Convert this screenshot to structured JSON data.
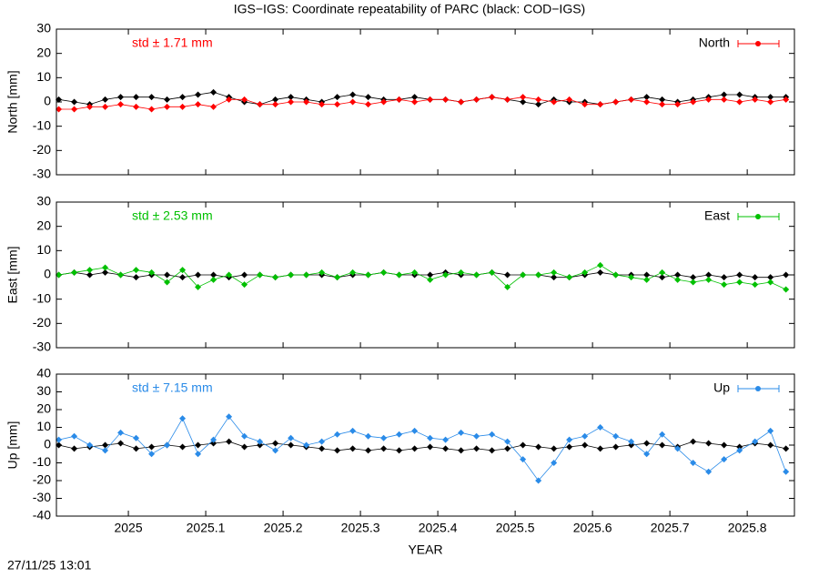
{
  "title": "IGS−IGS: Coordinate repeatability of PARC (black: COD−IGS)",
  "footer": "27/11/25 13:01",
  "chart_data": [
    {
      "type": "line",
      "ylabel": "North [mm]",
      "annotation": "std ± 1.71 mm",
      "xlim": [
        2024.907,
        2025.861
      ],
      "xticks": [
        2025,
        2025.1,
        2025.2,
        2025.3,
        2025.4,
        2025.5,
        2025.6,
        2025.7,
        2025.8
      ],
      "ylim": [
        -30,
        30
      ],
      "yticks": [
        -30,
        -20,
        -10,
        0,
        10,
        20,
        30
      ],
      "x": [
        2024.91,
        2024.93,
        2024.95,
        2024.97,
        2024.99,
        2025.01,
        2025.03,
        2025.05,
        2025.07,
        2025.09,
        2025.11,
        2025.13,
        2025.15,
        2025.17,
        2025.19,
        2025.21,
        2025.23,
        2025.25,
        2025.27,
        2025.29,
        2025.31,
        2025.33,
        2025.35,
        2025.37,
        2025.39,
        2025.41,
        2025.43,
        2025.45,
        2025.47,
        2025.49,
        2025.51,
        2025.53,
        2025.55,
        2025.57,
        2025.59,
        2025.61,
        2025.63,
        2025.65,
        2025.67,
        2025.69,
        2025.71,
        2025.73,
        2025.75,
        2025.77,
        2025.79,
        2025.81,
        2025.83,
        2025.85
      ],
      "series": [
        {
          "color": "#000000",
          "values": [
            1,
            0,
            -1,
            1,
            2,
            2,
            2,
            1,
            2,
            3,
            4,
            2,
            0,
            -1,
            1,
            2,
            1,
            0,
            2,
            3,
            2,
            1,
            1,
            2,
            1,
            1,
            0,
            1,
            2,
            1,
            0,
            -1,
            1,
            0,
            0,
            -1,
            0,
            1,
            2,
            1,
            0,
            1,
            2,
            3,
            3,
            2,
            2,
            2
          ]
        },
        {
          "name": "North",
          "color": "#ff0000",
          "values": [
            -3,
            -3,
            -2,
            -2,
            -1,
            -2,
            -3,
            -2,
            -2,
            -1,
            -2,
            1,
            1,
            -1,
            -1,
            0,
            0,
            -1,
            -1,
            0,
            -1,
            0,
            1,
            0,
            1,
            1,
            0,
            1,
            2,
            1,
            2,
            1,
            0,
            1,
            -1,
            -1,
            0,
            1,
            0,
            -1,
            -1,
            0,
            1,
            1,
            0,
            1,
            0,
            1
          ]
        }
      ]
    },
    {
      "type": "line",
      "ylabel": "East [mm]",
      "annotation": "std ± 2.53 mm",
      "xlim": [
        2024.907,
        2025.861
      ],
      "xticks": [
        2025,
        2025.1,
        2025.2,
        2025.3,
        2025.4,
        2025.5,
        2025.6,
        2025.7,
        2025.8
      ],
      "ylim": [
        -30,
        30
      ],
      "yticks": [
        -30,
        -20,
        -10,
        0,
        10,
        20,
        30
      ],
      "x": [
        2024.91,
        2024.93,
        2024.95,
        2024.97,
        2024.99,
        2025.01,
        2025.03,
        2025.05,
        2025.07,
        2025.09,
        2025.11,
        2025.13,
        2025.15,
        2025.17,
        2025.19,
        2025.21,
        2025.23,
        2025.25,
        2025.27,
        2025.29,
        2025.31,
        2025.33,
        2025.35,
        2025.37,
        2025.39,
        2025.41,
        2025.43,
        2025.45,
        2025.47,
        2025.49,
        2025.51,
        2025.53,
        2025.55,
        2025.57,
        2025.59,
        2025.61,
        2025.63,
        2025.65,
        2025.67,
        2025.69,
        2025.71,
        2025.73,
        2025.75,
        2025.77,
        2025.79,
        2025.81,
        2025.83,
        2025.85
      ],
      "series": [
        {
          "color": "#000000",
          "values": [
            0,
            1,
            0,
            1,
            0,
            -1,
            0,
            0,
            -1,
            0,
            0,
            -1,
            0,
            0,
            -1,
            0,
            0,
            0,
            -1,
            0,
            0,
            1,
            0,
            0,
            0,
            1,
            0,
            0,
            1,
            0,
            0,
            0,
            -1,
            -1,
            0,
            1,
            0,
            0,
            0,
            -1,
            0,
            -1,
            0,
            -1,
            0,
            -1,
            -1,
            0
          ]
        },
        {
          "name": "East",
          "color": "#00c000",
          "values": [
            0,
            1,
            2,
            3,
            0,
            2,
            1,
            -3,
            2,
            -5,
            -2,
            0,
            -4,
            0,
            -1,
            0,
            0,
            1,
            -1,
            1,
            0,
            1,
            0,
            1,
            -2,
            0,
            1,
            0,
            1,
            -5,
            0,
            0,
            1,
            -1,
            1,
            4,
            0,
            -1,
            -2,
            1,
            -2,
            -3,
            -2,
            -4,
            -3,
            -4,
            -3,
            -6
          ]
        }
      ]
    },
    {
      "type": "line",
      "ylabel": "Up [mm]",
      "annotation": "std ± 7.15 mm",
      "xlabel": "YEAR",
      "xlim": [
        2024.907,
        2025.861
      ],
      "xticks": [
        2025,
        2025.1,
        2025.2,
        2025.3,
        2025.4,
        2025.5,
        2025.6,
        2025.7,
        2025.8
      ],
      "ylim": [
        -40,
        40
      ],
      "yticks": [
        -40,
        -30,
        -20,
        -10,
        0,
        10,
        20,
        30,
        40
      ],
      "x": [
        2024.91,
        2024.93,
        2024.95,
        2024.97,
        2024.99,
        2025.01,
        2025.03,
        2025.05,
        2025.07,
        2025.09,
        2025.11,
        2025.13,
        2025.15,
        2025.17,
        2025.19,
        2025.21,
        2025.23,
        2025.25,
        2025.27,
        2025.29,
        2025.31,
        2025.33,
        2025.35,
        2025.37,
        2025.39,
        2025.41,
        2025.43,
        2025.45,
        2025.47,
        2025.49,
        2025.51,
        2025.53,
        2025.55,
        2025.57,
        2025.59,
        2025.61,
        2025.63,
        2025.65,
        2025.67,
        2025.69,
        2025.71,
        2025.73,
        2025.75,
        2025.77,
        2025.79,
        2025.81,
        2025.83,
        2025.85
      ],
      "series": [
        {
          "color": "#000000",
          "values": [
            0,
            -2,
            -1,
            0,
            1,
            -2,
            -1,
            0,
            -1,
            0,
            1,
            2,
            -1,
            0,
            1,
            0,
            -1,
            -2,
            -3,
            -2,
            -3,
            -2,
            -3,
            -2,
            -1,
            -2,
            -3,
            -2,
            -3,
            -2,
            0,
            -1,
            -2,
            -1,
            0,
            -2,
            -1,
            0,
            1,
            0,
            -1,
            2,
            1,
            0,
            -1,
            1,
            0,
            -2
          ]
        },
        {
          "name": "Up",
          "color": "#2a8be8",
          "values": [
            3,
            5,
            0,
            -3,
            7,
            4,
            -5,
            0,
            15,
            -5,
            3,
            16,
            5,
            2,
            -3,
            4,
            0,
            2,
            6,
            8,
            5,
            4,
            6,
            8,
            4,
            3,
            7,
            5,
            6,
            2,
            -8,
            -20,
            -10,
            3,
            5,
            10,
            5,
            2,
            -5,
            6,
            -2,
            -10,
            -15,
            -8,
            -3,
            2,
            8,
            -15
          ]
        }
      ]
    }
  ]
}
